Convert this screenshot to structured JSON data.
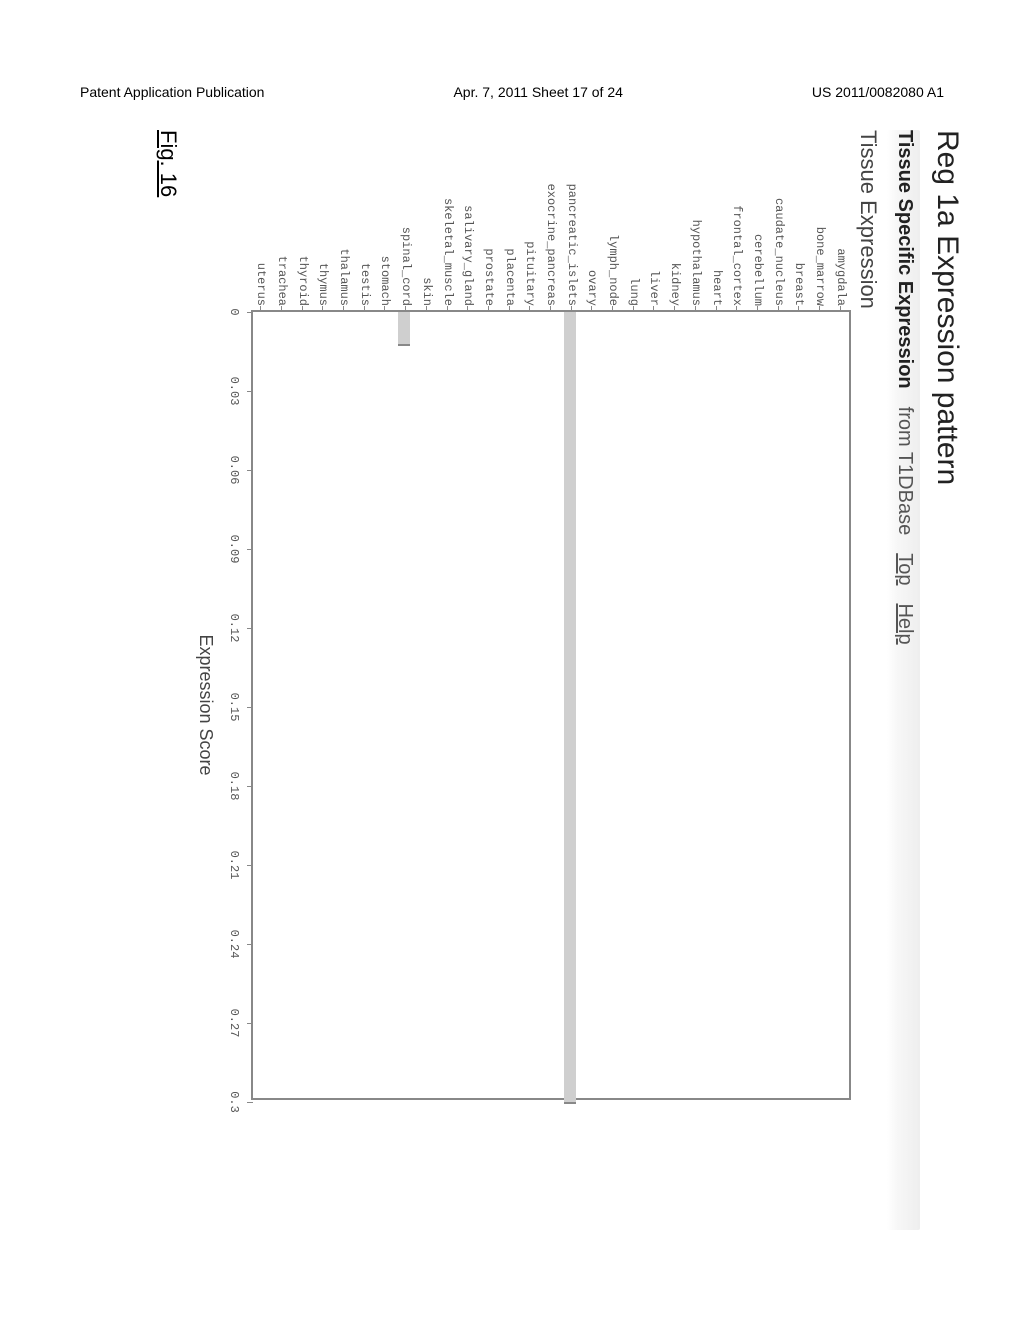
{
  "header": {
    "left": "Patent Application Publication",
    "center": "Apr. 7, 2011  Sheet 17 of 24",
    "right": "US 2011/0082080 A1"
  },
  "figure": {
    "title": "Reg 1a Expression pattern",
    "subtitle_bold": "Tissue Specific Expression",
    "subtitle_from": "from T1DBase",
    "link_top": "Top",
    "link_help": "Help",
    "figure_number": "Fig. 16"
  },
  "chart": {
    "type": "bar",
    "orientation": "horizontal",
    "title": "Tissue Expression",
    "xlabel": "Expression Score",
    "xlim": [
      0,
      0.3
    ],
    "xticks": [
      0,
      0.03,
      0.06,
      0.09,
      0.12,
      0.15,
      0.18,
      0.21,
      0.24,
      0.27,
      0.3
    ],
    "xtick_labels": [
      "0",
      "0.03",
      "0.06",
      "0.09",
      "0.12",
      "0.15",
      "0.18",
      "0.21",
      "0.24",
      "0.27",
      "0.3"
    ],
    "bar_color": "#cfcfcf",
    "bar_border_color": "#888888",
    "plot_border_color": "#888888",
    "background_color": "#ffffff",
    "label_fontsize": 12,
    "title_fontsize": 22,
    "categories": [
      "amygdala",
      "bone_marrow",
      "breast",
      "caudate_nucleus",
      "cerebellum",
      "frontal_cortex",
      "heart",
      "hypothalamus",
      "kidney",
      "liver",
      "lung",
      "lymph_node",
      "ovary",
      "pancreatic_islets",
      "exocrine_pancreas",
      "pituitary",
      "placenta",
      "prostate",
      "salivary_gland",
      "skeletal_muscle",
      "skin",
      "spinal_cord",
      "stomach",
      "testis",
      "thalamus",
      "thymus",
      "thyroid",
      "trachea",
      "uterus"
    ],
    "values": [
      0,
      0,
      0,
      0,
      0,
      0,
      0,
      0,
      0,
      0,
      0,
      0,
      0,
      0.3,
      0,
      0,
      0,
      0,
      0,
      0,
      0,
      0.012,
      0,
      0,
      0,
      0,
      0,
      0,
      0
    ]
  }
}
